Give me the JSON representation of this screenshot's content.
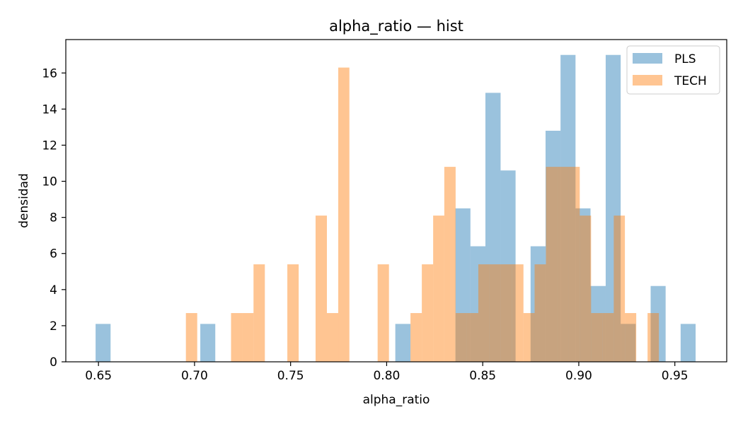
{
  "chart_data": {
    "type": "bar",
    "title": "alpha_ratio — hist",
    "xlabel": "alpha_ratio",
    "ylabel": "densidad",
    "xlim": [
      0.633,
      0.977
    ],
    "ylim": [
      0,
      17.85
    ],
    "x_ticks": [
      0.65,
      0.7,
      0.75,
      0.8,
      0.85,
      0.9,
      0.95
    ],
    "x_tick_labels": [
      "0.65",
      "0.70",
      "0.75",
      "0.80",
      "0.85",
      "0.90",
      "0.95"
    ],
    "y_ticks": [
      0,
      2,
      4,
      6,
      8,
      10,
      12,
      14,
      16
    ],
    "y_tick_labels": [
      "0",
      "2",
      "4",
      "6",
      "8",
      "10",
      "12",
      "14",
      "16"
    ],
    "grid": false,
    "legend_position": "top-right",
    "series": [
      {
        "name": "PLS",
        "color": "#1f77b4",
        "alpha": 0.45,
        "bins": [
          {
            "x0": 0.6485,
            "x1": 0.6563,
            "y": 2.1
          },
          {
            "x0": 0.703,
            "x1": 0.7108,
            "y": 2.1
          },
          {
            "x0": 0.8045,
            "x1": 0.8124,
            "y": 2.1
          },
          {
            "x0": 0.8358,
            "x1": 0.8436,
            "y": 8.5
          },
          {
            "x0": 0.8436,
            "x1": 0.8514,
            "y": 6.4
          },
          {
            "x0": 0.8514,
            "x1": 0.8593,
            "y": 14.9
          },
          {
            "x0": 0.8593,
            "x1": 0.8671,
            "y": 10.6
          },
          {
            "x0": 0.8749,
            "x1": 0.8827,
            "y": 6.4
          },
          {
            "x0": 0.8827,
            "x1": 0.8905,
            "y": 12.8
          },
          {
            "x0": 0.8905,
            "x1": 0.8983,
            "y": 17.0
          },
          {
            "x0": 0.8983,
            "x1": 0.9061,
            "y": 8.5
          },
          {
            "x0": 0.9061,
            "x1": 0.914,
            "y": 4.2
          },
          {
            "x0": 0.914,
            "x1": 0.9218,
            "y": 17.0
          },
          {
            "x0": 0.9218,
            "x1": 0.9296,
            "y": 2.1
          },
          {
            "x0": 0.9374,
            "x1": 0.9452,
            "y": 4.2
          },
          {
            "x0": 0.953,
            "x1": 0.9608,
            "y": 2.1
          }
        ]
      },
      {
        "name": "TECH",
        "color": "#ff7f0e",
        "alpha": 0.45,
        "bins": [
          {
            "x0": 0.6955,
            "x1": 0.7014,
            "y": 2.7
          },
          {
            "x0": 0.719,
            "x1": 0.7249,
            "y": 2.7
          },
          {
            "x0": 0.7249,
            "x1": 0.7307,
            "y": 2.7
          },
          {
            "x0": 0.7307,
            "x1": 0.7366,
            "y": 5.4
          },
          {
            "x0": 0.7483,
            "x1": 0.7542,
            "y": 5.4
          },
          {
            "x0": 0.763,
            "x1": 0.7689,
            "y": 8.1
          },
          {
            "x0": 0.7689,
            "x1": 0.7748,
            "y": 2.7
          },
          {
            "x0": 0.7748,
            "x1": 0.7806,
            "y": 16.3
          },
          {
            "x0": 0.7953,
            "x1": 0.8012,
            "y": 5.4
          },
          {
            "x0": 0.8124,
            "x1": 0.8183,
            "y": 2.7
          },
          {
            "x0": 0.8183,
            "x1": 0.8242,
            "y": 5.4
          },
          {
            "x0": 0.8242,
            "x1": 0.83,
            "y": 8.1
          },
          {
            "x0": 0.83,
            "x1": 0.8359,
            "y": 10.8
          },
          {
            "x0": 0.8359,
            "x1": 0.8418,
            "y": 2.7
          },
          {
            "x0": 0.8418,
            "x1": 0.8477,
            "y": 2.7
          },
          {
            "x0": 0.8477,
            "x1": 0.8535,
            "y": 5.4
          },
          {
            "x0": 0.8535,
            "x1": 0.8594,
            "y": 5.4
          },
          {
            "x0": 0.8594,
            "x1": 0.8653,
            "y": 5.4
          },
          {
            "x0": 0.8653,
            "x1": 0.8712,
            "y": 5.4
          },
          {
            "x0": 0.8712,
            "x1": 0.877,
            "y": 2.7
          },
          {
            "x0": 0.877,
            "x1": 0.8829,
            "y": 5.4
          },
          {
            "x0": 0.8829,
            "x1": 0.8888,
            "y": 10.8
          },
          {
            "x0": 0.8888,
            "x1": 0.8947,
            "y": 10.8
          },
          {
            "x0": 0.8947,
            "x1": 0.9005,
            "y": 10.8
          },
          {
            "x0": 0.9005,
            "x1": 0.9064,
            "y": 8.1
          },
          {
            "x0": 0.9064,
            "x1": 0.9123,
            "y": 2.7
          },
          {
            "x0": 0.9123,
            "x1": 0.9182,
            "y": 2.7
          },
          {
            "x0": 0.9182,
            "x1": 0.924,
            "y": 8.1
          },
          {
            "x0": 0.924,
            "x1": 0.9299,
            "y": 2.7
          },
          {
            "x0": 0.9358,
            "x1": 0.9417,
            "y": 2.7
          }
        ]
      }
    ]
  }
}
